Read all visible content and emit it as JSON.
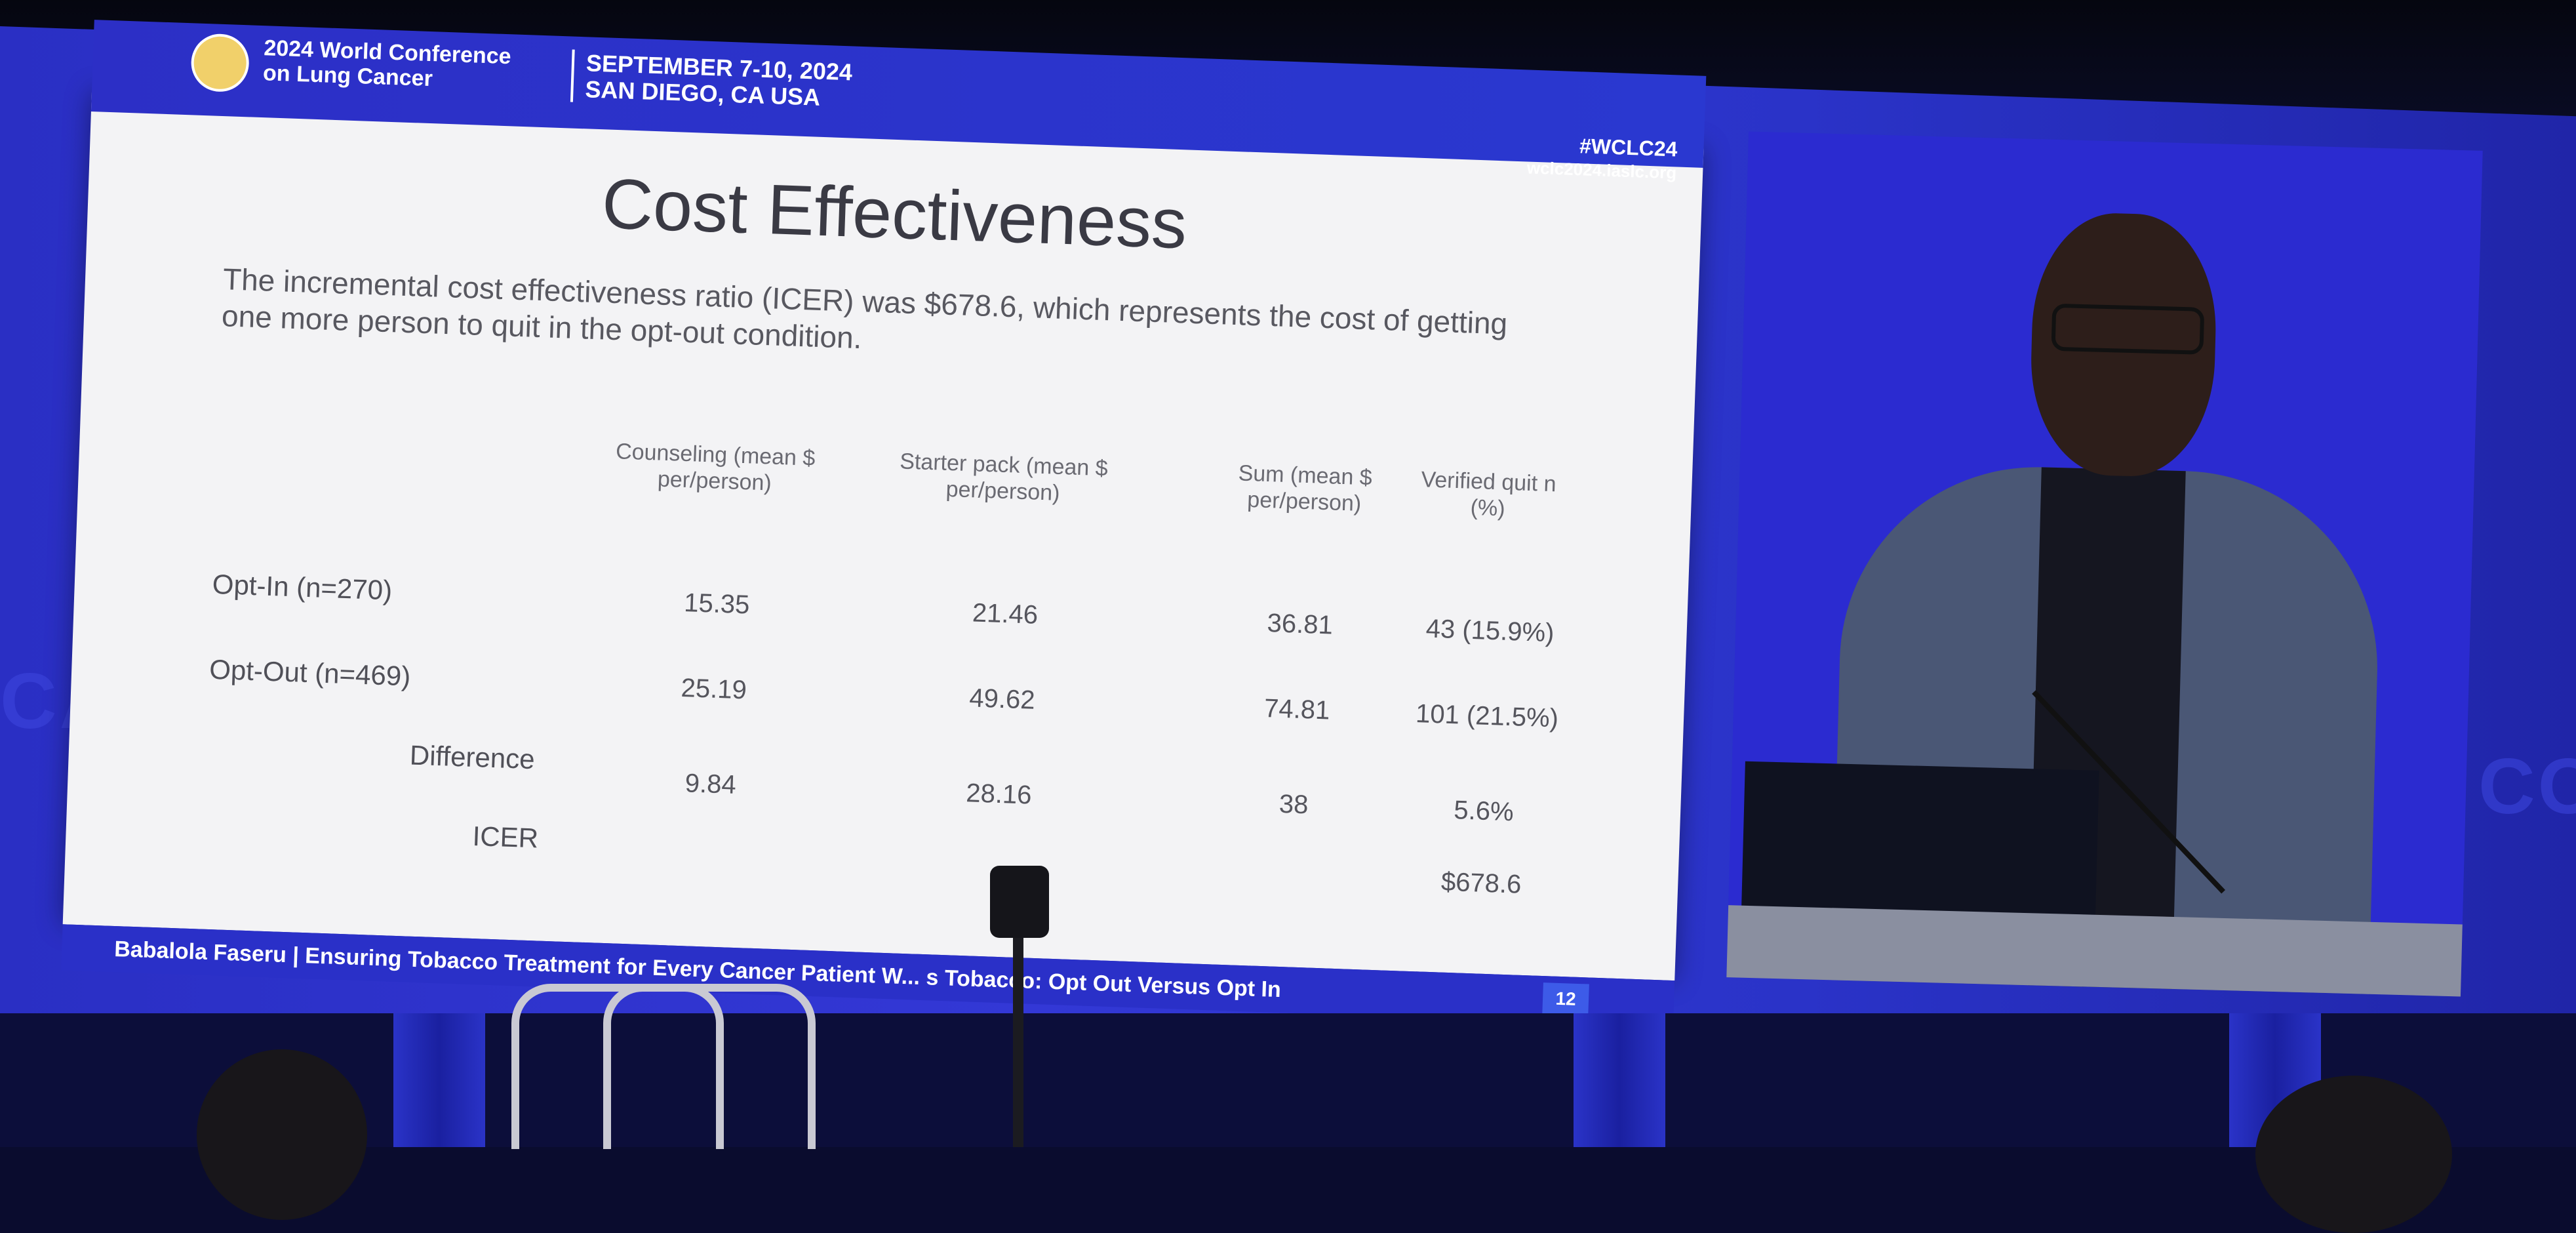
{
  "conference": {
    "name_line1": "2024 World Conference",
    "name_line2": "on Lung Cancer",
    "date": "SEPTEMBER 7-10, 2024",
    "location": "SAN DIEGO, CA USA",
    "hashtag": "#WCLC24",
    "website": "wclc2024.iaslc.org"
  },
  "slide": {
    "title": "Cost Effectiveness",
    "subtitle": "The incremental cost effectiveness ratio (ICER) was $678.6, which represents the cost of getting one more person to quit in the opt-out condition.",
    "table": {
      "headers": [
        "Counseling (mean $ per/person)",
        "Starter pack (mean $ per/person)",
        "Sum (mean $ per/person)",
        "Verified quit n (%)"
      ],
      "rows": [
        {
          "label": "Opt-In (n=270)",
          "values": [
            "15.35",
            "21.46",
            "36.81",
            "43 (15.9%)"
          ]
        },
        {
          "label": "Opt-Out (n=469)",
          "values": [
            "25.19",
            "49.62",
            "74.81",
            "101 (21.5%)"
          ]
        },
        {
          "label": "Difference",
          "values": [
            "9.84",
            "28.16",
            "38",
            "5.6%"
          ]
        },
        {
          "label": "ICER",
          "values": [
            "",
            "",
            "",
            "$678.6"
          ]
        }
      ]
    },
    "footer": "Babalola Faseru | Ensuring Tobacco Treatment for Every Cancer Patient W... s Tobacco: Opt Out Versus Opt In",
    "page_number": "12"
  },
  "colors": {
    "screen_blue": "#3338d6",
    "slide_bg": "#f3f3f5",
    "header_blue": "#2c2fc6"
  }
}
